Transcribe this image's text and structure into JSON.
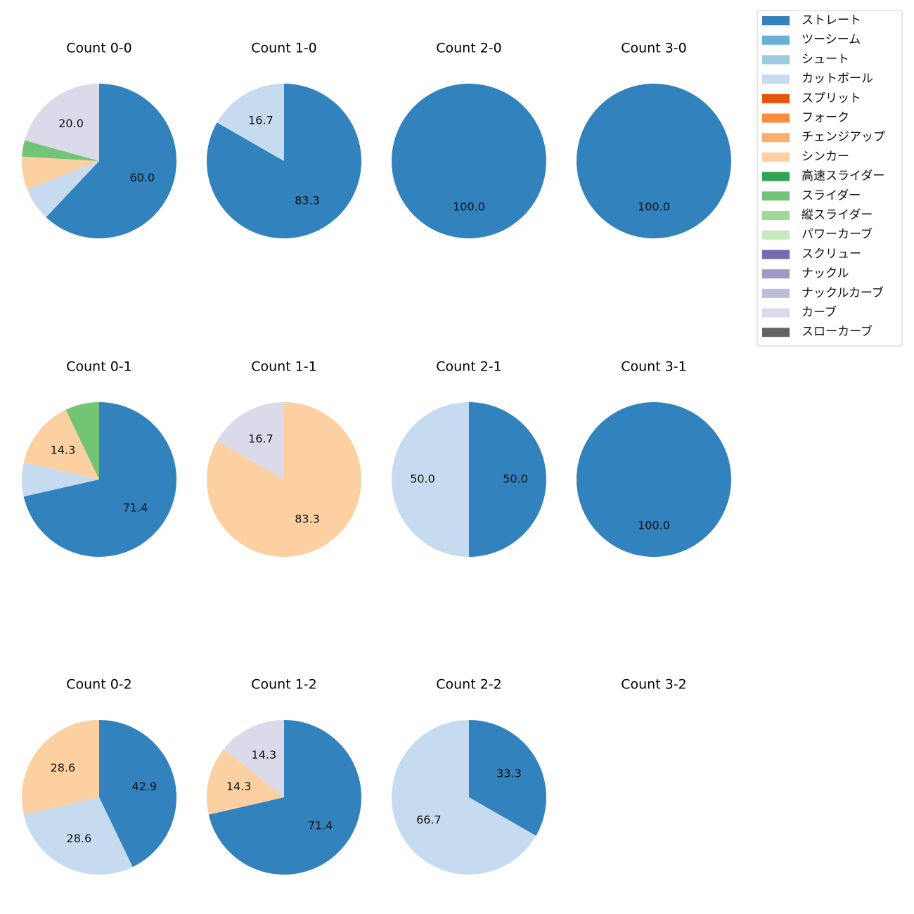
{
  "chart_data": {
    "type": "pie",
    "legend": {
      "placement": "top-right",
      "entries": [
        {
          "name": "ストレート",
          "color": "#3182bd"
        },
        {
          "name": "ツーシーム",
          "color": "#6baed6"
        },
        {
          "name": "シュート",
          "color": "#9ecae1"
        },
        {
          "name": "カットボール",
          "color": "#c6dbef"
        },
        {
          "name": "スプリット",
          "color": "#e6550d"
        },
        {
          "name": "フォーク",
          "color": "#fd8d3c"
        },
        {
          "name": "チェンジアップ",
          "color": "#fdae6b"
        },
        {
          "name": "シンカー",
          "color": "#fdd0a2"
        },
        {
          "name": "高速スライダー",
          "color": "#31a354"
        },
        {
          "name": "スライダー",
          "color": "#74c476"
        },
        {
          "name": "縦スライダー",
          "color": "#a1d99b"
        },
        {
          "name": "パワーカーブ",
          "color": "#c7e9c0"
        },
        {
          "name": "スクリュー",
          "color": "#756bb1"
        },
        {
          "name": "ナックル",
          "color": "#9e9ac8"
        },
        {
          "name": "ナックルカーブ",
          "color": "#bcbddc"
        },
        {
          "name": "カーブ",
          "color": "#dadaeb"
        },
        {
          "name": "スローカーブ",
          "color": "#636363"
        }
      ]
    },
    "charts": [
      {
        "title": "Count 0-0",
        "slices": [
          {
            "pitch": "ストレート",
            "value": 60.0,
            "label": "60.0"
          },
          {
            "pitch": "カットボール",
            "value": 6.7,
            "label": ""
          },
          {
            "pitch": "シンカー",
            "value": 6.7,
            "label": ""
          },
          {
            "pitch": "スライダー",
            "value": 3.3,
            "label": ""
          },
          {
            "pitch": "カーブ",
            "value": 20.0,
            "label": "20.0"
          }
        ]
      },
      {
        "title": "Count 1-0",
        "slices": [
          {
            "pitch": "ストレート",
            "value": 83.3,
            "label": "83.3"
          },
          {
            "pitch": "カットボール",
            "value": 16.7,
            "label": "16.7"
          }
        ]
      },
      {
        "title": "Count 2-0",
        "slices": [
          {
            "pitch": "ストレート",
            "value": 100.0,
            "label": "100.0"
          }
        ]
      },
      {
        "title": "Count 3-0",
        "slices": [
          {
            "pitch": "ストレート",
            "value": 100.0,
            "label": "100.0"
          }
        ]
      },
      {
        "title": "Count 0-1",
        "slices": [
          {
            "pitch": "ストレート",
            "value": 71.4,
            "label": "71.4"
          },
          {
            "pitch": "カットボール",
            "value": 7.1,
            "label": ""
          },
          {
            "pitch": "シンカー",
            "value": 14.3,
            "label": "14.3"
          },
          {
            "pitch": "スライダー",
            "value": 7.1,
            "label": ""
          }
        ]
      },
      {
        "title": "Count 1-1",
        "slices": [
          {
            "pitch": "シンカー",
            "value": 83.3,
            "label": "83.3"
          },
          {
            "pitch": "カーブ",
            "value": 16.7,
            "label": "16.7"
          }
        ]
      },
      {
        "title": "Count 2-1",
        "slices": [
          {
            "pitch": "ストレート",
            "value": 50.0,
            "label": "50.0"
          },
          {
            "pitch": "カットボール",
            "value": 50.0,
            "label": "50.0"
          }
        ]
      },
      {
        "title": "Count 3-1",
        "slices": [
          {
            "pitch": "ストレート",
            "value": 100.0,
            "label": "100.0"
          }
        ]
      },
      {
        "title": "Count 0-2",
        "slices": [
          {
            "pitch": "ストレート",
            "value": 42.9,
            "label": "42.9"
          },
          {
            "pitch": "カットボール",
            "value": 28.6,
            "label": "28.6"
          },
          {
            "pitch": "シンカー",
            "value": 28.6,
            "label": "28.6"
          }
        ]
      },
      {
        "title": "Count 1-2",
        "slices": [
          {
            "pitch": "ストレート",
            "value": 71.4,
            "label": "71.4"
          },
          {
            "pitch": "シンカー",
            "value": 14.3,
            "label": "14.3"
          },
          {
            "pitch": "カーブ",
            "value": 14.3,
            "label": "14.3"
          }
        ]
      },
      {
        "title": "Count 2-2",
        "slices": [
          {
            "pitch": "ストレート",
            "value": 33.3,
            "label": "33.3"
          },
          {
            "pitch": "カットボール",
            "value": 66.7,
            "label": "66.7"
          }
        ]
      },
      {
        "title": "Count 3-2",
        "slices": []
      }
    ]
  }
}
